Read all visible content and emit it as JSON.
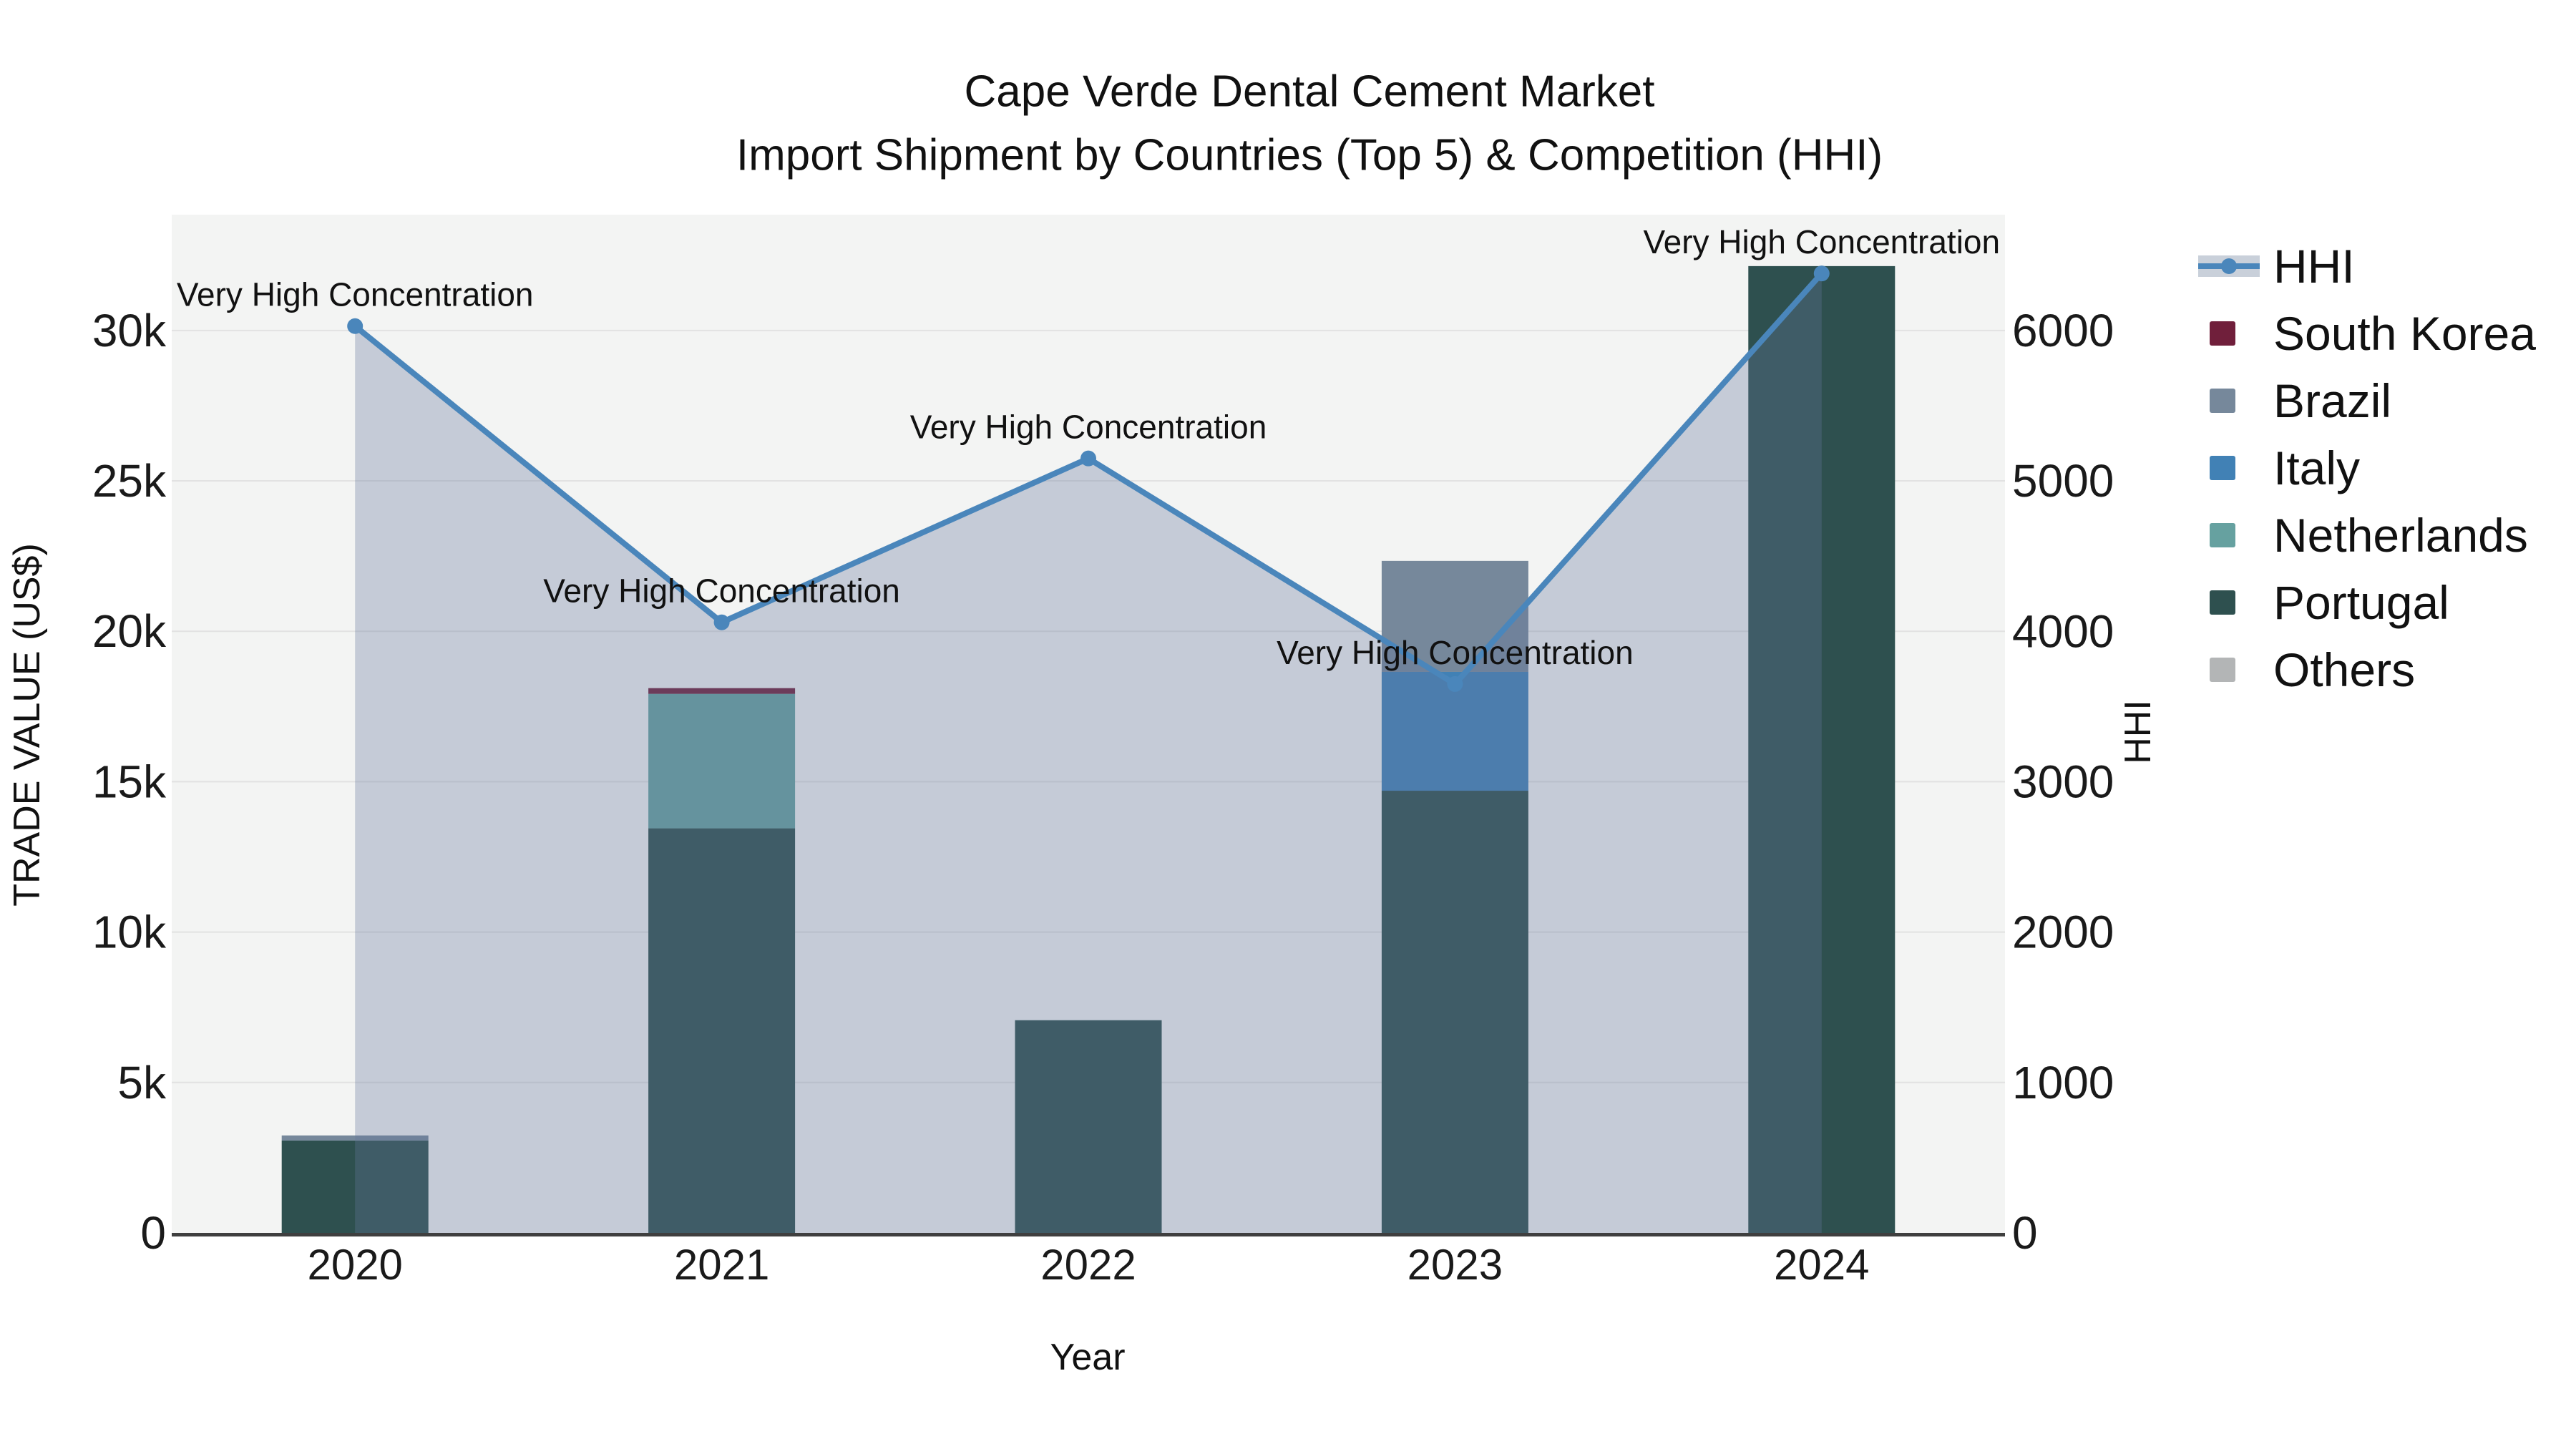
{
  "title": {
    "line1": "Cape Verde Dental Cement Market",
    "line2": "Import Shipment by Countries (Top 5) & Competition (HHI)"
  },
  "axes": {
    "x_label": "Year",
    "y_left_label": "TRADE VALUE (US$)",
    "y_right_label": "HHI",
    "x_ticks": [
      "2020",
      "2021",
      "2022",
      "2023",
      "2024"
    ],
    "y_left_ticks": [
      {
        "value": 0,
        "label": "0"
      },
      {
        "value": 5000,
        "label": "5k"
      },
      {
        "value": 10000,
        "label": "10k"
      },
      {
        "value": 15000,
        "label": "15k"
      },
      {
        "value": 20000,
        "label": "20k"
      },
      {
        "value": 25000,
        "label": "25k"
      },
      {
        "value": 30000,
        "label": "30k"
      }
    ],
    "y_right_ticks": [
      {
        "value": 0,
        "label": "0"
      },
      {
        "value": 1000,
        "label": "1000"
      },
      {
        "value": 2000,
        "label": "2000"
      },
      {
        "value": 3000,
        "label": "3000"
      },
      {
        "value": 4000,
        "label": "4000"
      },
      {
        "value": 5000,
        "label": "5000"
      },
      {
        "value": 6000,
        "label": "6000"
      }
    ]
  },
  "legend": {
    "items": [
      {
        "label": "HHI",
        "type": "line",
        "color": "#4a86bb",
        "band": "#c9d0da"
      },
      {
        "label": "South Korea",
        "type": "swatch",
        "color": "#701f3b"
      },
      {
        "label": "Brazil",
        "type": "swatch",
        "color": "#76889b"
      },
      {
        "label": "Italy",
        "type": "swatch",
        "color": "#4181b5"
      },
      {
        "label": "Netherlands",
        "type": "swatch",
        "color": "#66a1a0"
      },
      {
        "label": "Portugal",
        "type": "swatch",
        "color": "#2e504f"
      },
      {
        "label": "Others",
        "type": "swatch",
        "color": "#b3b5b6"
      }
    ]
  },
  "chart_data": {
    "type": "bar+line",
    "title": "Cape Verde Dental Cement Market Import Shipment by Countries (Top 5) & Competition (HHI)",
    "categories": [
      "2020",
      "2021",
      "2022",
      "2023",
      "2024"
    ],
    "bar_unit": "US$",
    "stack_order_note": "bars stacked bottom-to-top in series order",
    "series": [
      {
        "name": "Portugal",
        "color": "#2e504f",
        "values": [
          3070,
          13450,
          7070,
          14700,
          32140
        ]
      },
      {
        "name": "Netherlands",
        "color": "#66a1a0",
        "values": [
          0,
          4470,
          0,
          0,
          0
        ]
      },
      {
        "name": "Italy",
        "color": "#4181b5",
        "values": [
          0,
          0,
          0,
          3950,
          0
        ]
      },
      {
        "name": "Brazil",
        "color": "#76889b",
        "values": [
          170,
          0,
          0,
          3690,
          0
        ]
      },
      {
        "name": "South Korea",
        "color": "#701f3b",
        "values": [
          0,
          190,
          0,
          0,
          0
        ]
      },
      {
        "name": "Others",
        "color": "#b3b5b6",
        "values": [
          0,
          0,
          0,
          0,
          0
        ]
      }
    ],
    "line_series": {
      "name": "HHI",
      "color": "#4a86bb",
      "marker_radius": 11,
      "line_width": 8,
      "values": [
        6030,
        4060,
        5150,
        3650,
        6380
      ],
      "area_fill": "rgba(101,119,154,0.32)"
    },
    "annotations": [
      {
        "year": "2020",
        "text": "Very High Concentration"
      },
      {
        "year": "2021",
        "text": "Very High Concentration"
      },
      {
        "year": "2022",
        "text": "Very High Concentration"
      },
      {
        "year": "2023",
        "text": "Very High Concentration"
      },
      {
        "year": "2024",
        "text": "Very High Concentration"
      }
    ],
    "xlabel": "Year",
    "ylabel_left": "TRADE VALUE (US$)",
    "ylabel_right": "HHI",
    "y_left_range": [
      0,
      33850
    ],
    "y_right_range": [
      0,
      6771
    ],
    "grid": "horizontal",
    "layout": {
      "plot_bg": "#f3f4f3",
      "grid_color": "#e2e2e2",
      "spine_color": "#3f3f3f",
      "legend_position": "right"
    }
  }
}
